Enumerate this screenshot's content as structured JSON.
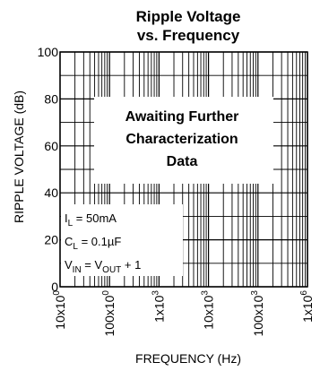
{
  "chart_data": {
    "type": "line",
    "title_line1": "Ripple Voltage",
    "title_line2": "vs. Frequency",
    "xlabel": "FREQUENCY (Hz)",
    "ylabel": "RIPPLE VOLTAGE (dB)",
    "x_scale": "log",
    "xlim": [
      10,
      1000000
    ],
    "ylim": [
      0,
      100
    ],
    "grid": true,
    "x_ticks": [
      10,
      100,
      1000,
      10000,
      100000,
      1000000
    ],
    "x_tick_labels": [
      {
        "base": "10x10",
        "exp": "0"
      },
      {
        "base": "100x10",
        "exp": "0"
      },
      {
        "base": "1x10",
        "exp": "3"
      },
      {
        "base": "10x10",
        "exp": "3"
      },
      {
        "base": "100x10",
        "exp": "3"
      },
      {
        "base": "1x10",
        "exp": "6"
      }
    ],
    "y_ticks": [
      0,
      20,
      40,
      60,
      80,
      100
    ],
    "y_tick_labels": [
      "0",
      "20",
      "40",
      "60",
      "80",
      "100"
    ],
    "series": [],
    "annotation": {
      "line1": "Awaiting Further",
      "line2": "Characterization",
      "line3": "Data"
    },
    "conditions": [
      {
        "sym": "I",
        "sub": "L",
        "rest": " = 50mA"
      },
      {
        "sym": "C",
        "sub": "L",
        "rest": " = 0.1µF"
      },
      {
        "sym": "V",
        "sub": "IN",
        "mid": " = V",
        "sub2": "OUT",
        "rest": " + 1"
      }
    ]
  }
}
